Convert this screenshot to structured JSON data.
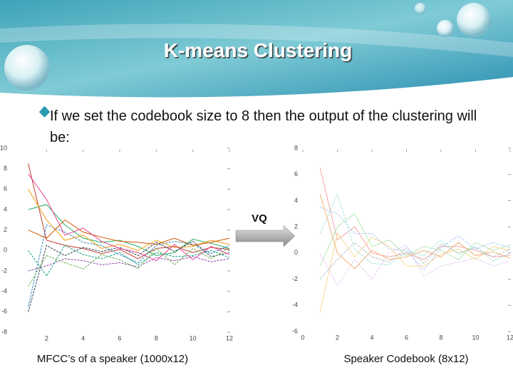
{
  "slide": {
    "title": "K-means Clustering",
    "bullet": "If we set the codebook size to 8 then the output of the clustering will be:",
    "arrow_label": "VQ"
  },
  "chart_data": [
    {
      "type": "line",
      "title": "MFCC’s of a speaker (1000x12)",
      "x": [
        1,
        2,
        3,
        4,
        5,
        6,
        7,
        8,
        9,
        10,
        11,
        12
      ],
      "xlim": [
        0,
        12
      ],
      "xticks": [
        2,
        4,
        6,
        8,
        10,
        12
      ],
      "ylim": [
        -8,
        10
      ],
      "yticks": [
        10,
        8,
        6,
        4,
        2,
        0,
        -2,
        -4,
        -6,
        -8
      ],
      "series": [
        {
          "color": "#c0392b",
          "values": [
            8.5,
            1,
            0.5,
            0.2,
            -0.3,
            0.1,
            -0.8,
            0.2,
            0.4,
            -0.2,
            0.3,
            0.1
          ]
        },
        {
          "color": "#2e86c1",
          "values": [
            -5.5,
            2.5,
            1.8,
            0.8,
            0.5,
            -0.4,
            -1.2,
            0.5,
            0.9,
            0.6,
            -0.3,
            0.5
          ]
        },
        {
          "color": "#27ae60",
          "values": [
            4,
            4.5,
            2.5,
            1.2,
            0.8,
            1,
            0.4,
            -0.5,
            -0.2,
            1.1,
            0.7,
            0.2
          ]
        },
        {
          "color": "#8e44ad",
          "values": [
            -2,
            -1.5,
            -0.8,
            -1,
            -1.4,
            -1.2,
            -1.6,
            -0.7,
            -1,
            -0.6,
            -1.1,
            -0.8
          ]
        },
        {
          "color": "#f39c12",
          "values": [
            6,
            3,
            1,
            1.5,
            0.2,
            0.6,
            0,
            1,
            0.3,
            0.4,
            1,
            0.6
          ]
        },
        {
          "color": "#16a085",
          "values": [
            0,
            -2.5,
            0.5,
            -0.4,
            -0.8,
            -0.2,
            -1.4,
            -0.2,
            -0.6,
            -0.5,
            0,
            -0.7
          ]
        },
        {
          "color": "#d35400",
          "values": [
            2,
            1.2,
            3,
            1.8,
            1.3,
            0.9,
            0.8,
            0.6,
            1.2,
            0.5,
            0.8,
            1.2
          ]
        },
        {
          "color": "#2c3e50",
          "values": [
            -6,
            0.5,
            -0.5,
            0.3,
            -0.1,
            0.3,
            -0.5,
            0.8,
            -0.1,
            0.9,
            -0.6,
            -0.2
          ]
        },
        {
          "color": "#e84393",
          "values": [
            7.5,
            5,
            1.5,
            2.2,
            0.9,
            0.2,
            -0.2,
            -1,
            0.6,
            -0.9,
            0.4,
            -0.4
          ]
        },
        {
          "color": "#6ab04c",
          "values": [
            -3.5,
            -0.5,
            -1.2,
            -1.8,
            -0.4,
            -0.9,
            -1.8,
            0.2,
            -1.4,
            0.2,
            -0.8,
            0.3
          ]
        }
      ]
    },
    {
      "type": "line",
      "title": "Speaker Codebook (8x12)",
      "x": [
        1,
        2,
        3,
        4,
        5,
        6,
        7,
        8,
        9,
        10,
        11,
        12
      ],
      "xlim": [
        0,
        12
      ],
      "xticks": [
        0,
        2,
        4,
        6,
        8,
        10,
        12
      ],
      "ylim": [
        -6,
        8
      ],
      "yticks": [
        8,
        6,
        4,
        2,
        0,
        -2,
        -4,
        -6
      ],
      "series": [
        {
          "color": "#f4a6a6",
          "values": [
            6.5,
            1,
            2,
            0,
            -0.3,
            0,
            -0.5,
            0.5,
            0.5,
            0.2,
            -0.3,
            -0.2
          ]
        },
        {
          "color": "#a6c8f4",
          "values": [
            3.5,
            3,
            1.5,
            1.5,
            0.3,
            0.2,
            -1.3,
            0.4,
            1.3,
            0.3,
            0.8,
            0.4
          ]
        },
        {
          "color": "#b5e6b5",
          "values": [
            -1,
            2,
            3,
            0.5,
            1,
            -0.2,
            0.5,
            0.2,
            -0.5,
            0.8,
            0.2,
            0.6
          ]
        },
        {
          "color": "#e6c8f0",
          "values": [
            0,
            -2.5,
            -0.5,
            -2,
            0,
            0.6,
            -1.8,
            -1,
            -0.7,
            -0.4,
            -1,
            -0.6
          ]
        },
        {
          "color": "#f7d794",
          "values": [
            -4.5,
            1.5,
            -0.3,
            1.2,
            0.5,
            -1,
            -1,
            -0.1,
            0.3,
            -0.5,
            0.5,
            0.2
          ]
        },
        {
          "color": "#9fe3d9",
          "values": [
            1.5,
            4.5,
            0.3,
            -0.8,
            -0.9,
            0.1,
            -0.2,
            1,
            -0.1,
            0.5,
            -0.6,
            0
          ]
        },
        {
          "color": "#f0b27a",
          "values": [
            4.5,
            0,
            -1.2,
            0.2,
            -0.5,
            -0.3,
            0.2,
            -0.3,
            0.8,
            -0.2,
            0.1,
            -0.4
          ]
        },
        {
          "color": "#b2bec3",
          "values": [
            -2,
            -0.5,
            0.8,
            -0.3,
            -0.7,
            0.4,
            -0.8,
            0.7,
            0,
            0.4,
            -0.3,
            0.3
          ]
        }
      ]
    }
  ]
}
